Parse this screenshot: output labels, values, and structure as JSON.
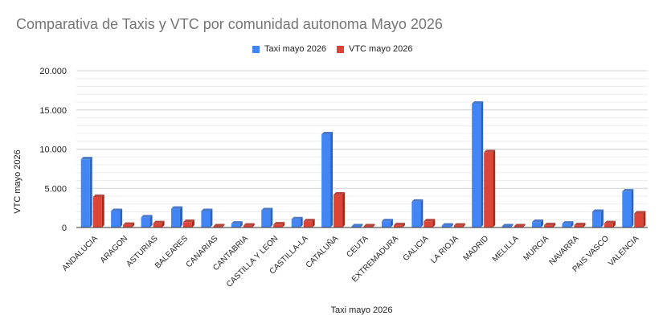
{
  "chart_data": {
    "type": "bar",
    "title": "Comparativa de Taxis y VTC por comunidad autonoma Mayo 2026",
    "xlabel": "Taxi mayo 2026",
    "ylabel": "VTC mayo 2026",
    "ylim": [
      0,
      20000
    ],
    "yticks": [
      "0",
      "5.000",
      "10.000",
      "15.000",
      "20.000"
    ],
    "ytick_values": [
      0,
      5000,
      10000,
      15000,
      20000
    ],
    "grid": true,
    "legend_position": "top",
    "categories": [
      "ANDALUCIA",
      "ARAGON",
      "ASTURIAS",
      "BALEARES",
      "CANARIAS",
      "CANTABRIA",
      "CASTILLA Y LEON",
      "CASTILLA-LA",
      "CATALUÑA",
      "CEUTA",
      "EXTREMADURA",
      "GALICIA",
      "LA RIOJA",
      "MADRID",
      "MELILLA",
      "MURCIA",
      "NAVARRA",
      "PAIS VASCO",
      "VALENCIA"
    ],
    "series": [
      {
        "name": "Taxi mayo 2026",
        "color": "#4285f4",
        "values": [
          8700,
          2100,
          1300,
          2400,
          2100,
          500,
          2200,
          1050,
          11900,
          50,
          800,
          3300,
          250,
          15800,
          50,
          700,
          500,
          2000,
          4600
        ]
      },
      {
        "name": "VTC mayo 2026",
        "color": "#db4437",
        "values": [
          3900,
          350,
          550,
          700,
          150,
          250,
          400,
          800,
          4200,
          50,
          300,
          800,
          250,
          9600,
          50,
          300,
          300,
          550,
          1800
        ]
      }
    ]
  }
}
